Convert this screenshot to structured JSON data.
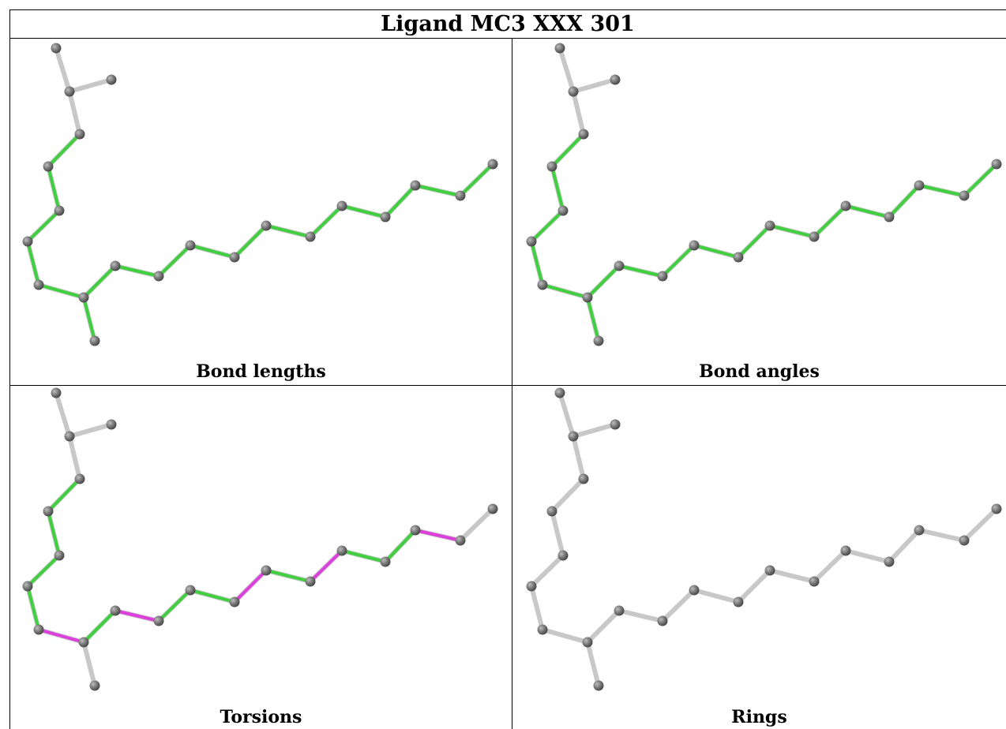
{
  "title": "Ligand MC3 XXX 301",
  "panels": [
    {
      "caption": "Bond lengths",
      "color_scheme": "bond-lengths"
    },
    {
      "caption": "Bond angles",
      "color_scheme": "bond-angles"
    },
    {
      "caption": "Torsions",
      "color_scheme": "torsions"
    },
    {
      "caption": "Rings",
      "color_scheme": "rings"
    }
  ],
  "colors": {
    "green": "#3fcf3f",
    "magenta": "#dd3fdd",
    "gray_bond": "#c8c8c8",
    "atom": "#7a7a7a"
  }
}
